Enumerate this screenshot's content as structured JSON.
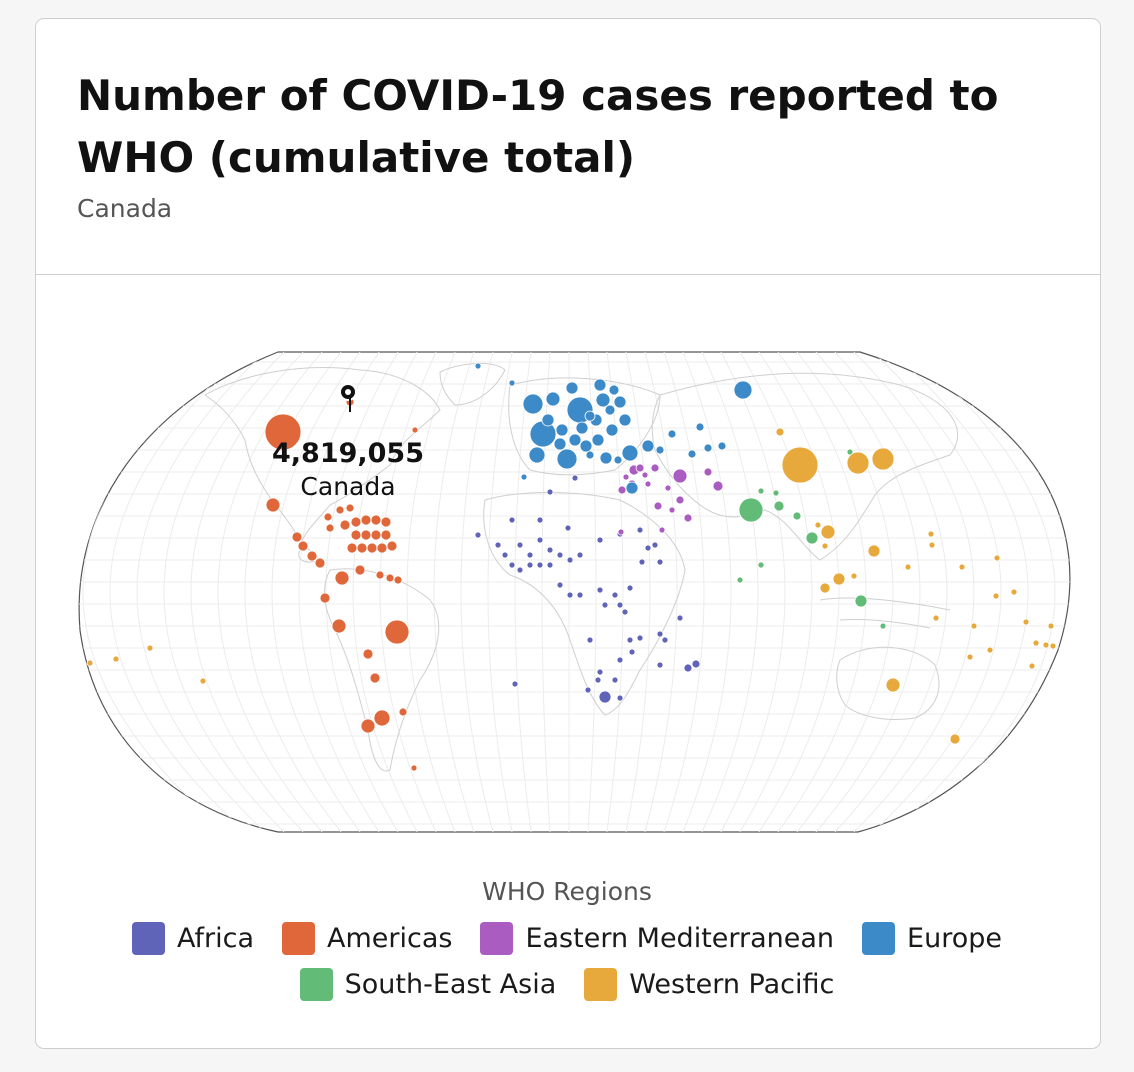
{
  "header": {
    "title": "Number of COVID-19 cases reported to WHO (cumulative total)",
    "subtitle": "Canada"
  },
  "tooltip": {
    "value": "4,819,055",
    "country": "Canada"
  },
  "legend": {
    "title": "WHO Regions",
    "items": [
      {
        "label": "Africa",
        "color": "#6064b8"
      },
      {
        "label": "Americas",
        "color": "#e0673a"
      },
      {
        "label": "Eastern Mediterranean",
        "color": "#aa5cc0"
      },
      {
        "label": "Europe",
        "color": "#3c8ac8"
      },
      {
        "label": "South-East Asia",
        "color": "#63bb78"
      },
      {
        "label": "Western Pacific",
        "color": "#e8a93c"
      }
    ]
  },
  "map": {
    "projection": "robinson-like",
    "selected_country": "Canada",
    "selected_marker_icon": "location-pin-icon"
  }
}
